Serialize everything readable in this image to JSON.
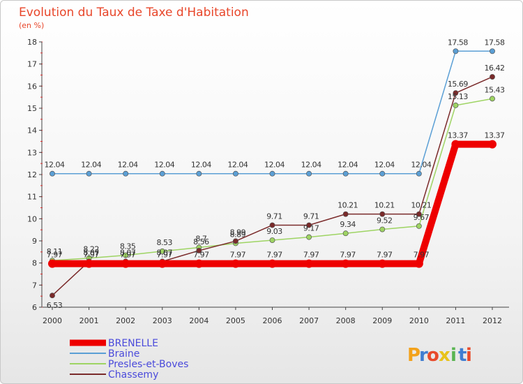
{
  "chart_data": {
    "type": "line",
    "title": "Evolution du Taux de Taxe d'Habitation",
    "subtitle": "(en %)",
    "categories": [
      "2000",
      "2001",
      "2002",
      "2003",
      "2004",
      "2005",
      "2006",
      "2007",
      "2008",
      "2009",
      "2010",
      "2011",
      "2012"
    ],
    "ylim": [
      6,
      18
    ],
    "yticks": [
      "6",
      "7",
      "8",
      "9",
      "10",
      "11",
      "12",
      "13",
      "14",
      "15",
      "16",
      "17",
      "18"
    ],
    "series": [
      {
        "name": "Braine",
        "color": "#5b9fd5",
        "values": [
          12.04,
          12.04,
          12.04,
          12.04,
          12.04,
          12.04,
          12.04,
          12.04,
          12.04,
          12.04,
          12.04,
          17.58,
          17.58
        ],
        "labels": [
          "12.04",
          "12.04",
          "12.04",
          "12.04",
          "12.04",
          "12.04",
          "12.04",
          "12.04",
          "12.04",
          "12.04",
          "12.04",
          "17.58",
          "17.58"
        ]
      },
      {
        "name": "Presles-et-Boves",
        "color": "#9ed463",
        "values": [
          8.11,
          8.22,
          8.35,
          8.53,
          8.7,
          8.89,
          9.03,
          9.17,
          9.34,
          9.52,
          9.67,
          15.13,
          15.43
        ],
        "labels": [
          "8.11",
          "8.22",
          "8.35",
          "8.53",
          "8.7",
          "8.89",
          "9.03",
          "9.17",
          "9.34",
          "9.52",
          "9.67",
          "15.13",
          "15.43"
        ]
      },
      {
        "name": "Chassemy",
        "color": "#7a2a2a",
        "values": [
          6.53,
          8.07,
          8.07,
          8.07,
          8.56,
          8.99,
          9.71,
          9.71,
          10.21,
          10.21,
          10.21,
          15.69,
          16.42
        ],
        "labels": [
          "6.53",
          "8.07",
          "8.07",
          "8.07",
          "8.56",
          "8.99",
          "9.71",
          "9.71",
          "10.21",
          "10.21",
          "10.21",
          "15.69",
          "16.42"
        ]
      },
      {
        "name": "BRENELLE",
        "color": "#ee0000",
        "values": [
          7.97,
          7.97,
          7.97,
          7.97,
          7.97,
          7.97,
          7.97,
          7.97,
          7.97,
          7.97,
          7.97,
          13.37,
          13.37
        ],
        "labels": [
          "7.97",
          "7.97",
          "7.97",
          "7.97",
          "7.97",
          "7.97",
          "7.97",
          "7.97",
          "7.97",
          "7.97",
          "7.97",
          "13.37",
          "13.37"
        ]
      }
    ],
    "legend": {
      "position": "bottom-left",
      "entries": [
        {
          "name": "BRENELLE",
          "color": "#ee0000"
        },
        {
          "name": "Braine",
          "color": "#5b9fd5"
        },
        {
          "name": "Presles-et-Boves",
          "color": "#9ed463"
        },
        {
          "name": "Chassemy",
          "color": "#7a2a2a"
        }
      ],
      "text_color": "#4a4adb"
    },
    "grid": false
  },
  "logo": {
    "letters": [
      "P",
      "r",
      "o",
      "x",
      "i",
      "t",
      "i"
    ],
    "colors": [
      "#f3a21b",
      "#3f7dd1",
      "#e84a2b",
      "#e8c21b",
      "#5ab552",
      "#3f7dd1",
      "#e84a2b"
    ]
  }
}
